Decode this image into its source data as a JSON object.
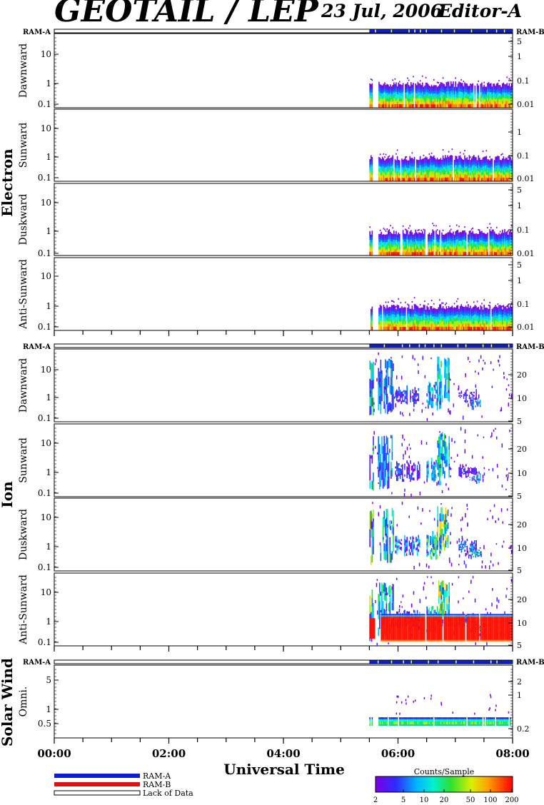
{
  "header": {
    "title": "GEOTAIL / LEP",
    "date": "23 Jul, 2006",
    "editor": "Editor-A"
  },
  "ram_labels": {
    "left": "RAM-A",
    "right": "RAM-B"
  },
  "species_labels": [
    "Electron",
    "Ion",
    "Solar Wind"
  ],
  "panel_labels": [
    "Dawnward",
    "Sunward",
    "Duskward",
    "Anti-Sunward",
    "Dawnward",
    "Sunward",
    "Duskward",
    "Anti-Sunward",
    "Omni."
  ],
  "x_axis": {
    "label": "Universal Time",
    "tick_labels": [
      "00:00",
      "02:00",
      "04:00",
      "06:00",
      "08:00"
    ]
  },
  "legend": {
    "items": [
      {
        "label": "RAM-A",
        "color": "#0a1fd0"
      },
      {
        "label": "RAM-B",
        "color": "#e01010"
      },
      {
        "label": "Lack of Data",
        "color": "#ffffff"
      }
    ]
  },
  "colorbar": {
    "title": "Counts/Sample",
    "tick_labels": [
      "2",
      "5",
      "10",
      "20",
      "50",
      "100",
      "200"
    ]
  },
  "chart_data": {
    "type": "heatmap",
    "x_range_hours": [
      0,
      8
    ],
    "data_start_hour": 5.5,
    "panels": [
      {
        "species": "Electron",
        "direction": "Dawnward",
        "left_ticks": [
          "10",
          "1",
          "0.1"
        ],
        "right_ticks": [
          "5",
          "1",
          "0.1",
          "0.01"
        ]
      },
      {
        "species": "Electron",
        "direction": "Sunward",
        "left_ticks": [
          "10",
          "1",
          "0.1"
        ],
        "right_ticks": [
          "1",
          "0.1",
          "0.01"
        ]
      },
      {
        "species": "Electron",
        "direction": "Duskward",
        "left_ticks": [
          "10",
          "1",
          "0.1"
        ],
        "right_ticks": [
          "5",
          "1",
          "0.1",
          "0.01"
        ]
      },
      {
        "species": "Electron",
        "direction": "Anti-Sunward",
        "left_ticks": [
          "10",
          "1",
          "0.1"
        ],
        "right_ticks": [
          "5",
          "1",
          "0.1",
          "0.01"
        ]
      },
      {
        "species": "Ion",
        "direction": "Dawnward",
        "left_ticks": [
          "10",
          "1",
          "0.1"
        ],
        "right_ticks": [
          "20",
          "10",
          "5"
        ]
      },
      {
        "species": "Ion",
        "direction": "Sunward",
        "left_ticks": [
          "10",
          "1",
          "0.1"
        ],
        "right_ticks": [
          "20",
          "10",
          "5"
        ]
      },
      {
        "species": "Ion",
        "direction": "Duskward",
        "left_ticks": [
          "10",
          "1",
          "0.1"
        ],
        "right_ticks": [
          "20",
          "10",
          "5"
        ]
      },
      {
        "species": "Ion",
        "direction": "Anti-Sunward",
        "left_ticks": [
          "10",
          "1",
          "0.1"
        ],
        "right_ticks": [
          "20",
          "10",
          "5"
        ]
      },
      {
        "species": "Solar Wind",
        "direction": "Omni.",
        "left_ticks": [
          "5",
          "1",
          "0.5"
        ],
        "right_ticks": [
          "2",
          "1",
          "0.2"
        ]
      }
    ]
  }
}
